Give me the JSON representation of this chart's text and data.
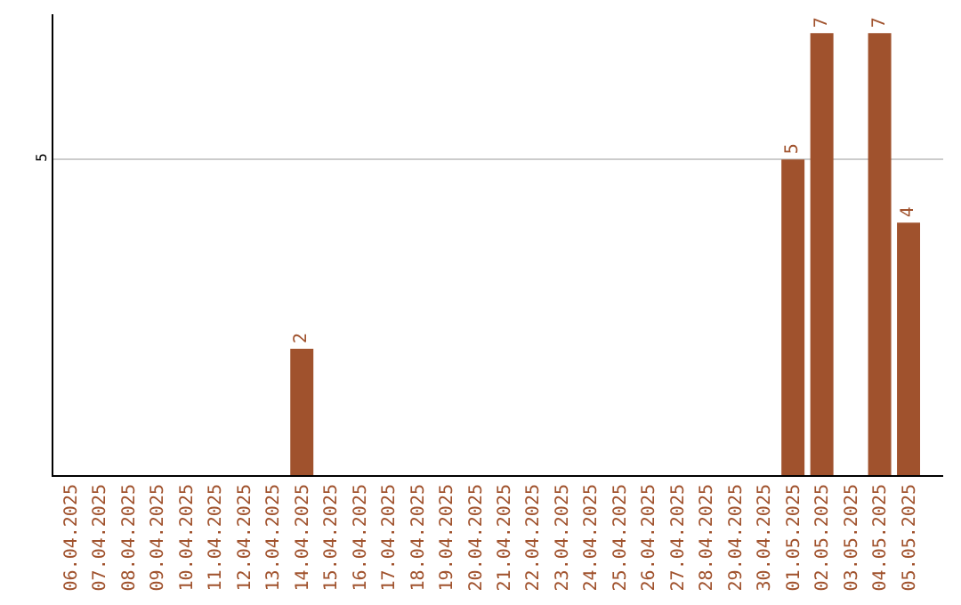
{
  "chart_data": {
    "type": "bar",
    "categories": [
      "06.04.2025",
      "07.04.2025",
      "08.04.2025",
      "09.04.2025",
      "10.04.2025",
      "11.04.2025",
      "12.04.2025",
      "13.04.2025",
      "14.04.2025",
      "15.04.2025",
      "16.04.2025",
      "17.04.2025",
      "18.04.2025",
      "19.04.2025",
      "20.04.2025",
      "21.04.2025",
      "22.04.2025",
      "23.04.2025",
      "24.04.2025",
      "25.04.2025",
      "26.04.2025",
      "27.04.2025",
      "28.04.2025",
      "29.04.2025",
      "30.04.2025",
      "01.05.2025",
      "02.05.2025",
      "03.05.2025",
      "04.05.2025",
      "05.05.2025"
    ],
    "values": [
      0,
      0,
      0,
      0,
      0,
      0,
      0,
      0,
      2,
      0,
      0,
      0,
      0,
      0,
      0,
      0,
      0,
      0,
      0,
      0,
      0,
      0,
      0,
      0,
      0,
      5,
      7,
      0,
      7,
      4
    ],
    "value_labels": [
      null,
      null,
      null,
      null,
      null,
      null,
      null,
      null,
      "2",
      null,
      null,
      null,
      null,
      null,
      null,
      null,
      null,
      null,
      null,
      null,
      null,
      null,
      null,
      null,
      null,
      "5",
      "7",
      null,
      "7",
      "4"
    ],
    "color": "#a0522d",
    "ylim": [
      0,
      7.3
    ],
    "yticks": [
      5
    ],
    "grid": "y",
    "legend": false
  }
}
